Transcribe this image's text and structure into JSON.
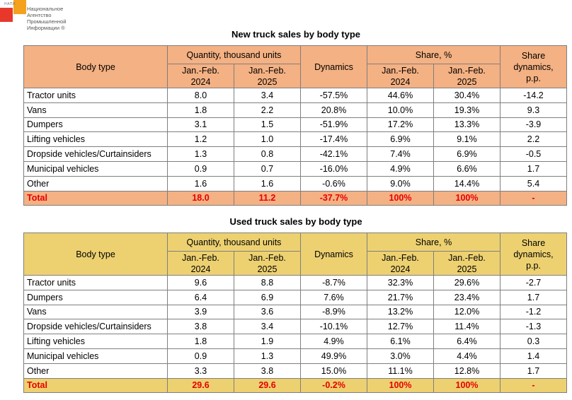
{
  "logo": {
    "abbr": "НАПИ",
    "name_line1": "Национальное",
    "name_line2": "Агентство",
    "name_line3": "Промышленной",
    "name_line4": "Информации ®"
  },
  "headers": {
    "body_type": "Body type",
    "quantity": "Quantity, thousand units",
    "dynamics": "Dynamics",
    "share": "Share, %",
    "share_dyn_1": "Share",
    "share_dyn_2": "dynamics,",
    "share_dyn_3": "p.p.",
    "period_a_1": "Jan.-Feb.",
    "period_a_2": "2024",
    "period_b_1": "Jan.-Feb.",
    "period_b_2": "2025"
  },
  "new_table": {
    "title": "New truck sales by body type",
    "rows": [
      [
        "Tractor units",
        "8.0",
        "3.4",
        "-57.5%",
        "44.6%",
        "30.4%",
        "-14.2"
      ],
      [
        "Vans",
        "1.8",
        "2.2",
        "20.8%",
        "10.0%",
        "19.3%",
        "9.3"
      ],
      [
        "Dumpers",
        "3.1",
        "1.5",
        "-51.9%",
        "17.2%",
        "13.3%",
        "-3.9"
      ],
      [
        "Lifting vehicles",
        "1.2",
        "1.0",
        "-17.4%",
        "6.9%",
        "9.1%",
        "2.2"
      ],
      [
        "Dropside vehicles/Curtainsiders",
        "1.3",
        "0.8",
        "-42.1%",
        "7.4%",
        "6.9%",
        "-0.5"
      ],
      [
        "Municipal vehicles",
        "0.9",
        "0.7",
        "-16.0%",
        "4.9%",
        "6.6%",
        "1.7"
      ],
      [
        "Other",
        "1.6",
        "1.6",
        "-0.6%",
        "9.0%",
        "14.4%",
        "5.4"
      ]
    ],
    "total": [
      "Total",
      "18.0",
      "11.2",
      "-37.7%",
      "100%",
      "100%",
      "-"
    ]
  },
  "used_table": {
    "title": "Used truck sales by body type",
    "rows": [
      [
        "Tractor units",
        "9.6",
        "8.8",
        "-8.7%",
        "32.3%",
        "29.6%",
        "-2.7"
      ],
      [
        "Dumpers",
        "6.4",
        "6.9",
        "7.6%",
        "21.7%",
        "23.4%",
        "1.7"
      ],
      [
        "Vans",
        "3.9",
        "3.6",
        "-8.9%",
        "13.2%",
        "12.0%",
        "-1.2"
      ],
      [
        "Dropside vehicles/Curtainsiders",
        "3.8",
        "3.4",
        "-10.1%",
        "12.7%",
        "11.4%",
        "-1.3"
      ],
      [
        "Lifting vehicles",
        "1.8",
        "1.9",
        "4.9%",
        "6.1%",
        "6.4%",
        "0.3"
      ],
      [
        "Municipal vehicles",
        "0.9",
        "1.3",
        "49.9%",
        "3.0%",
        "4.4%",
        "1.4"
      ],
      [
        "Other",
        "3.3",
        "3.8",
        "15.0%",
        "11.1%",
        "12.8%",
        "1.7"
      ]
    ],
    "total": [
      "Total",
      "29.6",
      "29.6",
      "-0.2%",
      "100%",
      "100%",
      "-"
    ]
  }
}
